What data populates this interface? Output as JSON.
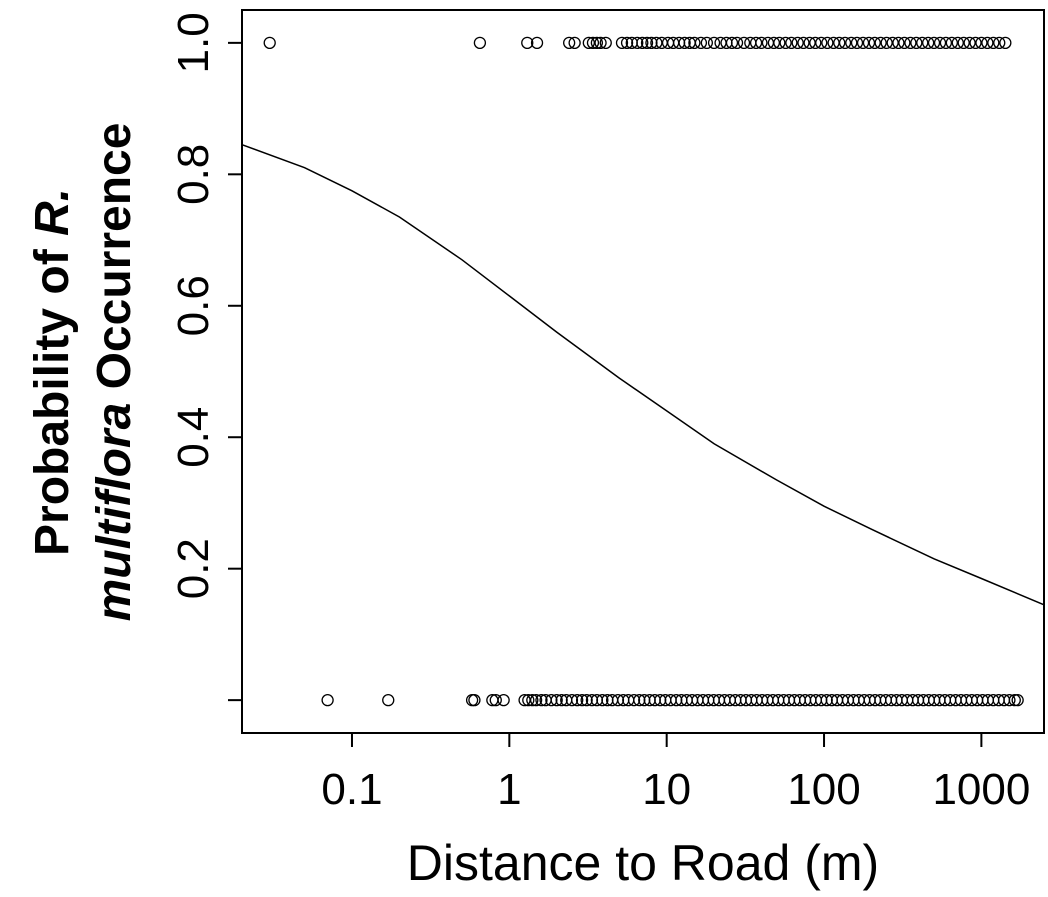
{
  "chart_data": {
    "type": "scatter",
    "x_scale": "log",
    "xlabel": "Distance to Road (m)",
    "ylabel": {
      "line1": "Probability of ",
      "line1_italic": "R.",
      "line2_italic": "multiflora",
      "line2": " Occurrence"
    },
    "xlim": [
      0.02,
      2500
    ],
    "ylim": [
      -0.05,
      1.05
    ],
    "x_ticks": [
      0.1,
      1,
      10,
      100,
      1000
    ],
    "x_tick_labels": [
      "0.1",
      "1",
      "10",
      "100",
      "1000"
    ],
    "y_ticks": [
      0,
      0.2,
      0.4,
      0.6,
      0.8,
      1.0
    ],
    "y_tick_labels": [
      "",
      "0.2",
      "0.4",
      "0.6",
      "0.8",
      "1.0"
    ],
    "grid": false,
    "series": [
      {
        "marker": "open-circle",
        "y": 1,
        "x": [
          0.03,
          0.65,
          1.3,
          1.5,
          2.4,
          2.6,
          3.2,
          3.4,
          3.6,
          3.8,
          4.1,
          5.2,
          5.6,
          6.0,
          6.5,
          7.0,
          7.5,
          8.0,
          8.6,
          9.3,
          10.2,
          11,
          12,
          13,
          14,
          15,
          16.5,
          18,
          20,
          22,
          24,
          26,
          28,
          31,
          34,
          37,
          40,
          44,
          48,
          52,
          57,
          62,
          68,
          74,
          81,
          88,
          96,
          105,
          115,
          125,
          136,
          149,
          162,
          177,
          193,
          210,
          229,
          250,
          273,
          297,
          324,
          354,
          386,
          421,
          459,
          500,
          546,
          595,
          649,
          708,
          772,
          842,
          918,
          1001,
          1092,
          1191,
          1299,
          1420
        ]
      },
      {
        "marker": "open-circle",
        "y": 0,
        "x": [
          0.07,
          0.17,
          0.58,
          0.6,
          0.78,
          0.82,
          0.92,
          1.25,
          1.32,
          1.4,
          1.48,
          1.6,
          1.7,
          1.85,
          2.0,
          2.15,
          2.3,
          2.5,
          2.7,
          2.9,
          3.1,
          3.35,
          3.6,
          3.9,
          4.2,
          4.5,
          4.9,
          5.3,
          5.7,
          6.2,
          6.7,
          7.2,
          7.8,
          8.4,
          9.1,
          9.8,
          10.6,
          11.5,
          12.4,
          13.4,
          14.5,
          15.7,
          17,
          18.4,
          19.9,
          21.5,
          23.3,
          25.2,
          27.3,
          29.5,
          31.9,
          34.5,
          37.3,
          40.4,
          43.7,
          47.3,
          51.2,
          55.4,
          59.9,
          64.8,
          70.1,
          75.8,
          82,
          88.7,
          96,
          104,
          112,
          121,
          131,
          142,
          154,
          166,
          180,
          195,
          211,
          228,
          247,
          267,
          289,
          312,
          338,
          366,
          396,
          428,
          463,
          501,
          542,
          586,
          634,
          686,
          742,
          803,
          869,
          940,
          1017,
          1100,
          1190,
          1288,
          1393,
          1507,
          1630,
          1700
        ]
      },
      {
        "type": "line",
        "name": "",
        "x": [
          0.02,
          0.05,
          0.1,
          0.2,
          0.5,
          1,
          2,
          5,
          10,
          20,
          50,
          100,
          200,
          500,
          1000,
          2500
        ],
        "y": [
          0.845,
          0.81,
          0.775,
          0.735,
          0.67,
          0.615,
          0.56,
          0.49,
          0.44,
          0.39,
          0.335,
          0.295,
          0.26,
          0.215,
          0.185,
          0.145
        ]
      }
    ]
  }
}
